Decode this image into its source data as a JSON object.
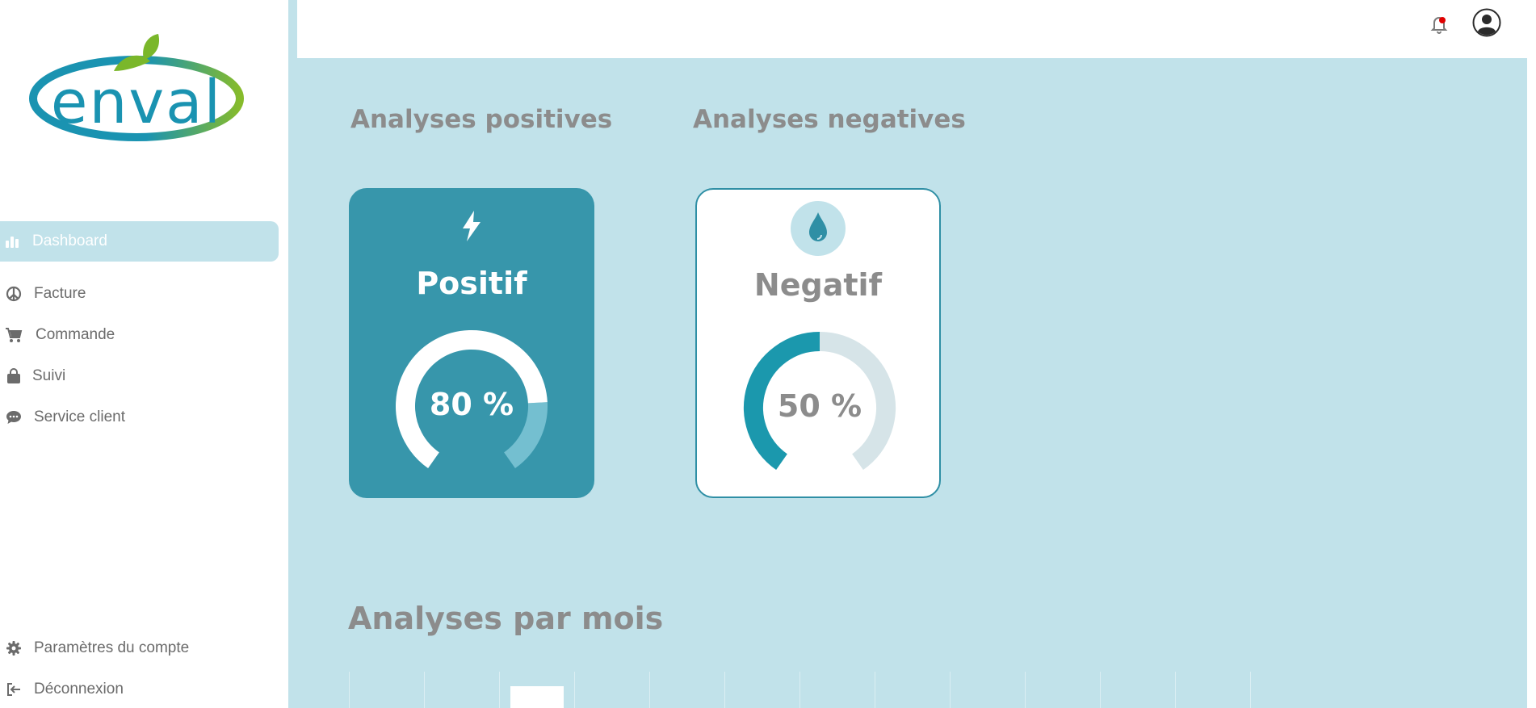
{
  "brand": {
    "logo_text": "enval"
  },
  "sidebar": {
    "items": [
      {
        "label": "Dashboard",
        "icon": "bar-chart-icon"
      },
      {
        "label": "Facture",
        "icon": "peace-icon"
      },
      {
        "label": "Commande",
        "icon": "cart-icon"
      },
      {
        "label": "Suivi",
        "icon": "bag-icon"
      },
      {
        "label": "Service client",
        "icon": "chat-icon"
      }
    ],
    "bottom_items": [
      {
        "label": "Paramètres du compte",
        "icon": "gear-icon"
      },
      {
        "label": "Déconnexion",
        "icon": "logout-icon"
      }
    ]
  },
  "header": {
    "notification_icon": "bell-icon",
    "account_icon": "user-circle-icon"
  },
  "main": {
    "positive_title": "Analyses positives",
    "negative_title": "Analyses negatives",
    "month_title": "Analyses par mois",
    "positive_card": {
      "label": "Positif",
      "icon": "lightning-icon",
      "percent": 80,
      "percent_text": "80 %"
    },
    "negative_card": {
      "label": "Negatif",
      "icon": "water-drop-icon",
      "percent": 50,
      "percent_text": "50 %"
    }
  },
  "colors": {
    "accent": "#3796ab",
    "background": "#c1e2ea",
    "teal_progress": "#1b98ad",
    "notification_dot": "#e00000"
  }
}
